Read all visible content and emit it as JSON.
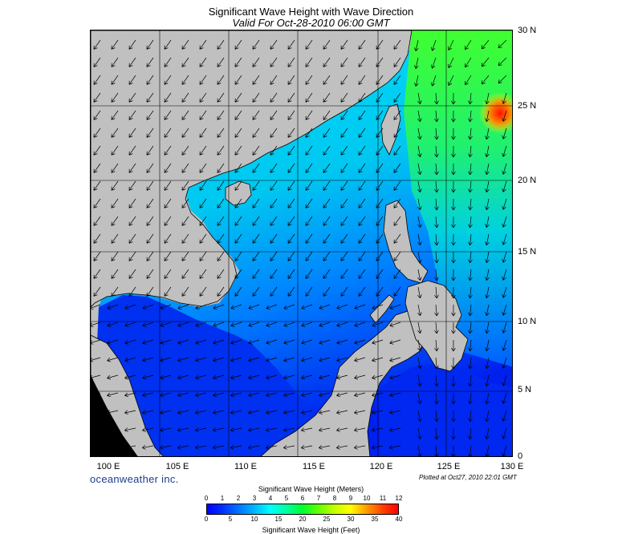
{
  "title": "Significant Wave Height with Wave Direction",
  "subtitle": "Valid For Oct-28-2010 06:00 GMT",
  "lat_labels": [
    "30 N",
    "25 N",
    "20 N",
    "15 N",
    "10 N",
    "5 N",
    "0"
  ],
  "lon_labels": [
    "100 E",
    "105 E",
    "110 E",
    "115 E",
    "120 E",
    "125 E",
    "130 E"
  ],
  "brand": "oceanweather inc.",
  "plotted": "Plotted at Oct27, 2010 22:01 GMT",
  "colorbar": {
    "meters_title": "Significant Wave Height (Meters)",
    "meters_ticks": [
      "0",
      "1",
      "2",
      "3",
      "4",
      "5",
      "6",
      "7",
      "8",
      "9",
      "10",
      "11",
      "12"
    ],
    "feet_title": "Significant Wave Height (Feet)",
    "feet_ticks": [
      "0",
      "5",
      "10",
      "15",
      "20",
      "25",
      "30",
      "35",
      "40"
    ]
  },
  "map": {
    "land_color": "#c0c0c0",
    "deep_water_color": "#0010e0",
    "mid_water_color": "#00a8ff",
    "high_water_color": "#3cff2a",
    "peak_color": "#ff2a00"
  }
}
